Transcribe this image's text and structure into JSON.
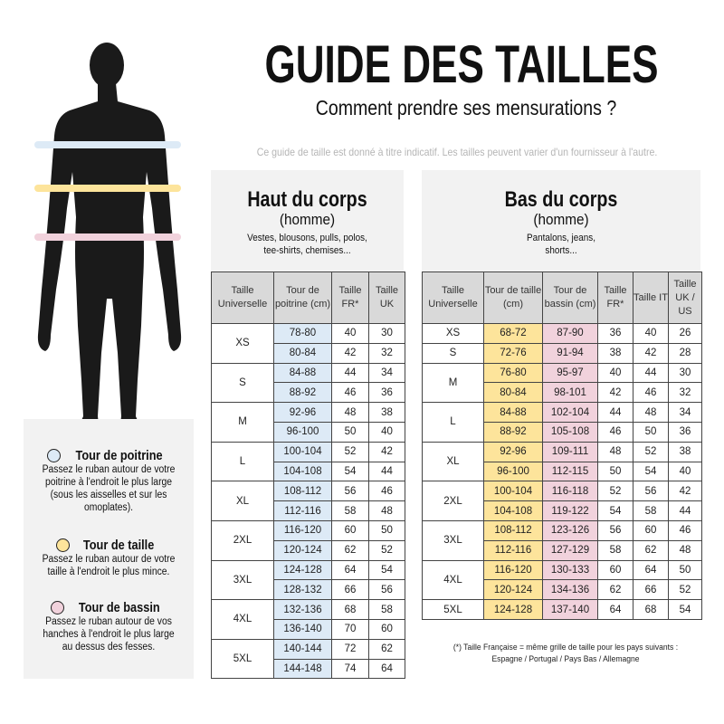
{
  "header": {
    "title": "GUIDE DES TAILLES",
    "subtitle": "Comment prendre ses mensurations ?",
    "disclaimer": "Ce guide de taille est donné à titre indicatif. Les tailles peuvent varier d'un fournisseur à l'autre."
  },
  "colors": {
    "chest": "#ddeaf6",
    "waist": "#fde49b",
    "hips": "#f1d2dc",
    "panel": "#f2f2f2",
    "header_cell": "#d9d9d9"
  },
  "legend": [
    {
      "icon": "circle-blue-icon",
      "title": "Tour de poitrine",
      "text": "Passez le ruban autour de votre poitrine à l'endroit le plus large (sous les aisselles et sur les omoplates)."
    },
    {
      "icon": "circle-yellow-icon",
      "title": "Tour de taille",
      "text": "Passez le ruban autour de votre taille à l'endroit le plus mince."
    },
    {
      "icon": "circle-pink-icon",
      "title": "Tour de bassin",
      "text": "Passez le ruban autour de vos hanches à l'endroit le plus large au dessus des fesses."
    }
  ],
  "upper": {
    "title": "Haut du corps",
    "subtitle": "(homme)",
    "description": "Vestes, blousons, pulls, polos, tee-shirts, chemises...",
    "columns": [
      "Taille Universelle",
      "Tour de poitrine (cm)",
      "Taille FR*",
      "Taille UK"
    ],
    "groups": [
      {
        "size": "XS",
        "rows": [
          [
            "78-80",
            "40",
            "30"
          ],
          [
            "80-84",
            "42",
            "32"
          ]
        ]
      },
      {
        "size": "S",
        "rows": [
          [
            "84-88",
            "44",
            "34"
          ],
          [
            "88-92",
            "46",
            "36"
          ]
        ]
      },
      {
        "size": "M",
        "rows": [
          [
            "92-96",
            "48",
            "38"
          ],
          [
            "96-100",
            "50",
            "40"
          ]
        ]
      },
      {
        "size": "L",
        "rows": [
          [
            "100-104",
            "52",
            "42"
          ],
          [
            "104-108",
            "54",
            "44"
          ]
        ]
      },
      {
        "size": "XL",
        "rows": [
          [
            "108-112",
            "56",
            "46"
          ],
          [
            "112-116",
            "58",
            "48"
          ]
        ]
      },
      {
        "size": "2XL",
        "rows": [
          [
            "116-120",
            "60",
            "50"
          ],
          [
            "120-124",
            "62",
            "52"
          ]
        ]
      },
      {
        "size": "3XL",
        "rows": [
          [
            "124-128",
            "64",
            "54"
          ],
          [
            "128-132",
            "66",
            "56"
          ]
        ]
      },
      {
        "size": "4XL",
        "rows": [
          [
            "132-136",
            "68",
            "58"
          ],
          [
            "136-140",
            "70",
            "60"
          ]
        ]
      },
      {
        "size": "5XL",
        "rows": [
          [
            "140-144",
            "72",
            "62"
          ],
          [
            "144-148",
            "74",
            "64"
          ]
        ]
      }
    ]
  },
  "lower": {
    "title": "Bas du corps",
    "subtitle": "(homme)",
    "description": "Pantalons, jeans, shorts...",
    "columns": [
      "Taille Universelle",
      "Tour de taille (cm)",
      "Tour de bassin (cm)",
      "Taille FR*",
      "Taille IT",
      "Taille UK / US"
    ],
    "groups": [
      {
        "size": "XS",
        "rows": [
          [
            "68-72",
            "87-90",
            "36",
            "40",
            "26"
          ]
        ]
      },
      {
        "size": "S",
        "rows": [
          [
            "72-76",
            "91-94",
            "38",
            "42",
            "28"
          ]
        ]
      },
      {
        "size": "M",
        "rows": [
          [
            "76-80",
            "95-97",
            "40",
            "44",
            "30"
          ],
          [
            "80-84",
            "98-101",
            "42",
            "46",
            "32"
          ]
        ]
      },
      {
        "size": "L",
        "rows": [
          [
            "84-88",
            "102-104",
            "44",
            "48",
            "34"
          ],
          [
            "88-92",
            "105-108",
            "46",
            "50",
            "36"
          ]
        ]
      },
      {
        "size": "XL",
        "rows": [
          [
            "92-96",
            "109-111",
            "48",
            "52",
            "38"
          ],
          [
            "96-100",
            "112-115",
            "50",
            "54",
            "40"
          ]
        ]
      },
      {
        "size": "2XL",
        "rows": [
          [
            "100-104",
            "116-118",
            "52",
            "56",
            "42"
          ],
          [
            "104-108",
            "119-122",
            "54",
            "58",
            "44"
          ]
        ]
      },
      {
        "size": "3XL",
        "rows": [
          [
            "108-112",
            "123-126",
            "56",
            "60",
            "46"
          ],
          [
            "112-116",
            "127-129",
            "58",
            "62",
            "48"
          ]
        ]
      },
      {
        "size": "4XL",
        "rows": [
          [
            "116-120",
            "130-133",
            "60",
            "64",
            "50"
          ],
          [
            "120-124",
            "134-136",
            "62",
            "66",
            "52"
          ]
        ]
      },
      {
        "size": "5XL",
        "rows": [
          [
            "124-128",
            "137-140",
            "64",
            "68",
            "54"
          ]
        ]
      }
    ],
    "footnote_line1": "(*) Taille Française = même grille de taille pour les pays suivants :",
    "footnote_line2": "Espagne / Portugal / Pays Bas / Allemagne"
  }
}
